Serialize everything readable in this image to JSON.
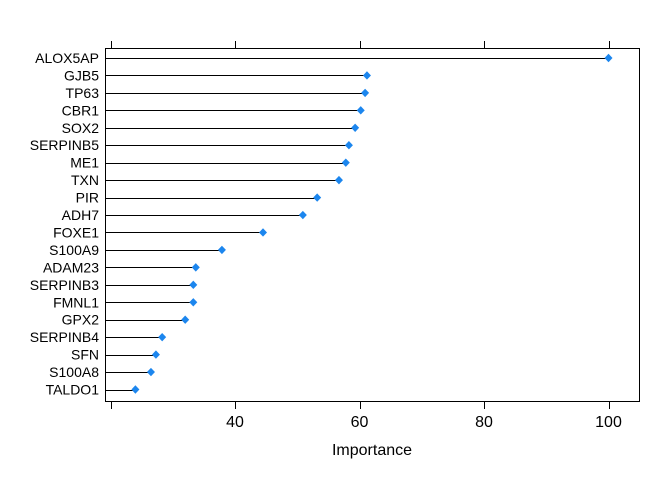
{
  "chart_data": {
    "type": "scatter",
    "variant": "lollipop-dotchart",
    "title": "",
    "xlabel": "Importance",
    "ylabel": "",
    "categories": [
      "ALOX5AP",
      "GJB5",
      "TP63",
      "CBR1",
      "SOX2",
      "SERPINB5",
      "ME1",
      "TXN",
      "PIR",
      "ADH7",
      "FOXE1",
      "S100A9",
      "ADAM23",
      "SERPINB3",
      "FMNL1",
      "GPX2",
      "SERPINB4",
      "SFN",
      "S100A8",
      "TALDO1"
    ],
    "values": [
      100.0,
      61.2,
      60.9,
      60.2,
      59.3,
      58.3,
      57.8,
      56.7,
      53.2,
      50.9,
      44.5,
      37.9,
      33.7,
      33.3,
      33.3,
      32.0,
      28.3,
      27.3,
      26.5,
      24.0
    ],
    "xlim": [
      19.0,
      105.0
    ],
    "x_ticks": [
      {
        "value": 20,
        "label": ""
      },
      {
        "value": 40,
        "label": "40"
      },
      {
        "value": 60,
        "label": "60"
      },
      {
        "value": 80,
        "label": "80"
      },
      {
        "value": 100,
        "label": "100"
      }
    ],
    "mirror_ticks_top": true,
    "grid": false,
    "legend": false,
    "colors": {
      "dot": "#1c86ee",
      "line": "#000000",
      "box": "#000000",
      "text": "#000000",
      "background": "#ffffff"
    }
  }
}
